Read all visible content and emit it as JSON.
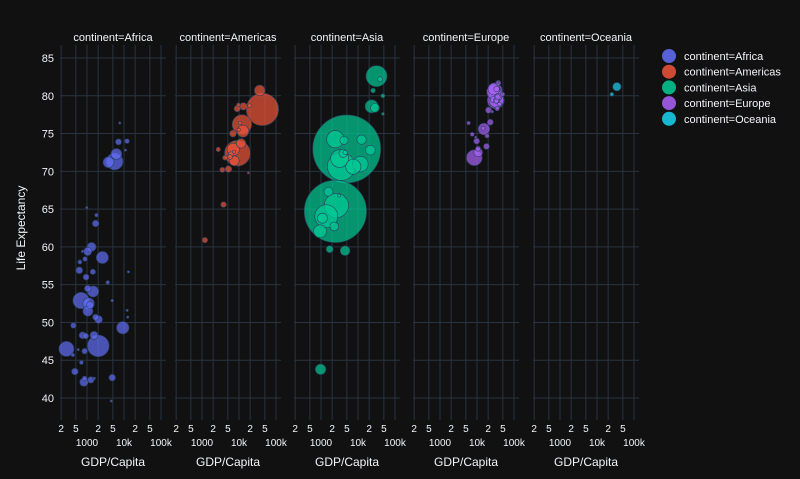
{
  "chart_data": {
    "type": "scatter",
    "subtype": "bubble-facet",
    "xlabel": "GDP/Capita",
    "ylabel": "Life Expectancy",
    "x_scale": "log",
    "xlim": [
      180,
      130000
    ],
    "ylim": [
      38,
      86.5
    ],
    "x_ticks": [
      200,
      500,
      1000,
      2000,
      5000,
      10000,
      20000,
      50000,
      100000
    ],
    "x_tick_labels": [
      "2",
      "5",
      "1000",
      "2",
      "5",
      "10k",
      "2",
      "5",
      "100k"
    ],
    "y_ticks": [
      40,
      45,
      50,
      55,
      60,
      65,
      70,
      75,
      80,
      85
    ],
    "y_tick_labels": [
      "40",
      "45",
      "50",
      "55",
      "60",
      "65",
      "70",
      "75",
      "80",
      "85"
    ],
    "grid": true,
    "legend_position": "top-right",
    "point_fields": [
      "gdp_per_capita",
      "life_expectancy",
      "population_millions"
    ],
    "facets": [
      {
        "title": "continent=Africa",
        "legend": "continent=Africa",
        "color": "#636efa",
        "points": [
          [
            2014,
            46.9,
            135
          ],
          [
            691,
            52.9,
            76.5
          ],
          [
            5581,
            71.3,
            80
          ],
          [
            278,
            46.5,
            64.6
          ],
          [
            9270,
            49.3,
            44
          ],
          [
            2602,
            58.6,
            42
          ],
          [
            1107,
            52.5,
            38
          ],
          [
            1463,
            54.1,
            35.6
          ],
          [
            3820,
            71.2,
            33.8
          ],
          [
            6223,
            72.3,
            33.3
          ],
          [
            1056,
            51.5,
            29
          ],
          [
            1328,
            60.0,
            22.9
          ],
          [
            824,
            42.1,
            20
          ],
          [
            1045,
            59.4,
            19
          ],
          [
            1545,
            48.3,
            18
          ],
          [
            2042,
            50.4,
            17.7
          ],
          [
            4797,
            42.7,
            12.4
          ],
          [
            1217,
            52.3,
            14.3
          ],
          [
            759,
            48.3,
            13.3
          ],
          [
            619,
            56.9,
            12.9
          ],
          [
            1042,
            54.5,
            12
          ],
          [
            1271,
            42.4,
            11.7
          ],
          [
            1712,
            63.1,
            12.3
          ],
          [
            470,
            43.5,
            12.3
          ],
          [
            1704,
            50.7,
            10.2
          ],
          [
            7093,
            73.9,
            10.3
          ],
          [
            943,
            56.0,
            9.9
          ],
          [
            863,
            46.2,
            8.9
          ],
          [
            926,
            48.2,
            9.1
          ],
          [
            1441,
            56.7,
            8.1
          ],
          [
            430,
            49.6,
            8.4
          ],
          [
            863,
            42.6,
            6.1
          ],
          [
            883,
            58.4,
            5.7
          ],
          [
            12057,
            74.0,
            6
          ],
          [
            641,
            58.0,
            4.9
          ],
          [
            706,
            44.7,
            4.4
          ],
          [
            415,
            45.7,
            3.2
          ],
          [
            1803,
            64.2,
            3.3
          ],
          [
            12570,
            50.7,
            1.6
          ],
          [
            4811,
            52.9,
            2
          ],
          [
            13206,
            56.7,
            1.45
          ],
          [
            1569,
            42.6,
            2
          ],
          [
            10957,
            72.8,
            1.25
          ],
          [
            753,
            59.4,
            1.7
          ],
          [
            4513,
            39.6,
            1.1
          ],
          [
            7670,
            76.4,
            0.8
          ],
          [
            986,
            65.2,
            0.7
          ],
          [
            12154,
            51.6,
            0.55
          ],
          [
            3633,
            55.3,
            3.8
          ],
          [
            579,
            46.4,
            1.5
          ]
        ]
      },
      {
        "title": "continent=Americas",
        "legend": "continent=Americas",
        "color": "#EF553B",
        "points": [
          [
            42952,
            78.2,
            301
          ],
          [
            9066,
            72.4,
            190
          ],
          [
            11978,
            76.2,
            108.7
          ],
          [
            7007,
            72.9,
            44
          ],
          [
            12779,
            75.3,
            40
          ],
          [
            36319,
            80.7,
            33
          ],
          [
            7409,
            71.4,
            28.7
          ],
          [
            11416,
            73.7,
            26
          ],
          [
            13172,
            78.6,
            16
          ],
          [
            6873,
            75.0,
            13.8
          ],
          [
            5186,
            70.3,
            12.6
          ],
          [
            8948,
            78.3,
            11.4
          ],
          [
            1202,
            60.9,
            8.5
          ],
          [
            3822,
            65.6,
            9.1
          ],
          [
            6025,
            72.2,
            9.3
          ],
          [
            3548,
            70.2,
            7.5
          ],
          [
            4173,
            71.8,
            6.7
          ],
          [
            5728,
            71.9,
            6.9
          ],
          [
            2749,
            72.9,
            5.7
          ],
          [
            9645,
            78.8,
            4.1
          ],
          [
            19329,
            78.7,
            3.9
          ],
          [
            10611,
            76.4,
            3.4
          ],
          [
            9809,
            75.5,
            3.2
          ],
          [
            7321,
            72.6,
            2.8
          ],
          [
            18008,
            69.8,
            1.06
          ]
        ]
      },
      {
        "title": "continent=Asia",
        "legend": "continent=Asia",
        "color": "#00cc96",
        "points": [
          [
            4959,
            72.96,
            1318.7
          ],
          [
            2452,
            64.7,
            1110
          ],
          [
            31656,
            82.6,
            127
          ],
          [
            3541,
            70.65,
            223
          ],
          [
            2606,
            65.48,
            169
          ],
          [
            1391,
            64.06,
            150
          ],
          [
            2442,
            74.25,
            85
          ],
          [
            3190,
            71.69,
            91
          ],
          [
            7458,
            70.6,
            65
          ],
          [
            11606,
            70.96,
            69
          ],
          [
            23348,
            78.6,
            49
          ],
          [
            975,
            43.8,
            31.9
          ],
          [
            944,
            62.07,
            47.8
          ],
          [
            1091,
            63.8,
            28.9
          ],
          [
            4471,
            59.5,
            27.5
          ],
          [
            21655,
            72.8,
            27.6
          ],
          [
            12452,
            74.2,
            24.8
          ],
          [
            1714,
            59.7,
            14
          ],
          [
            3970,
            72.4,
            20
          ],
          [
            28718,
            78.4,
            23
          ],
          [
            1593,
            67.3,
            23
          ],
          [
            2281,
            62.7,
            22
          ],
          [
            39725,
            82.2,
            6.98
          ],
          [
            25523,
            80.7,
            6.4
          ],
          [
            47143,
            80.0,
            4.55
          ],
          [
            47307,
            77.6,
            2.5
          ],
          [
            3096,
            66.8,
            2.9
          ],
          [
            4185,
            74.1,
            19
          ],
          [
            4519,
            72.5,
            6
          ]
        ]
      },
      {
        "title": "continent=Europe",
        "legend": "continent=Europe",
        "color": "#ab63fa",
        "points": [
          [
            32170,
            79.4,
            82
          ],
          [
            8458,
            71.8,
            71
          ],
          [
            30470,
            80.7,
            61
          ],
          [
            33203,
            79.4,
            60.8
          ],
          [
            28570,
            80.5,
            58
          ],
          [
            28821,
            80.9,
            40
          ],
          [
            15390,
            75.6,
            38.5
          ],
          [
            10808,
            72.5,
            22
          ],
          [
            36798,
            79.8,
            16.6
          ],
          [
            27538,
            79.5,
            10.7
          ],
          [
            20510,
            78.1,
            10.6
          ],
          [
            33693,
            79.4,
            10.4
          ],
          [
            22833,
            76.5,
            10.2
          ],
          [
            18009,
            73.3,
            10
          ],
          [
            9787,
            74.0,
            10
          ],
          [
            33860,
            80.9,
            9
          ],
          [
            36126,
            79.8,
            8.2
          ],
          [
            10681,
            73.0,
            7.3
          ],
          [
            37506,
            81.7,
            7.55
          ],
          [
            35278,
            78.3,
            5.5
          ],
          [
            18678,
            74.7,
            5.4
          ],
          [
            33207,
            79.3,
            5.2
          ],
          [
            49357,
            80.2,
            4.6
          ],
          [
            14619,
            75.7,
            4.5
          ],
          [
            40676,
            78.9,
            4.1
          ],
          [
            7446,
            74.9,
            4.5
          ],
          [
            5937,
            76.4,
            3.6
          ],
          [
            9254,
            74.5,
            0.68
          ],
          [
            25768,
            77.9,
            2
          ],
          [
            36181,
            81.8,
            0.3
          ]
        ]
      },
      {
        "title": "continent=Oceania",
        "legend": "continent=Oceania",
        "color": "#19d3f3",
        "points": [
          [
            34435,
            81.2,
            20.4
          ],
          [
            25185,
            80.2,
            4.1
          ]
        ]
      }
    ]
  }
}
